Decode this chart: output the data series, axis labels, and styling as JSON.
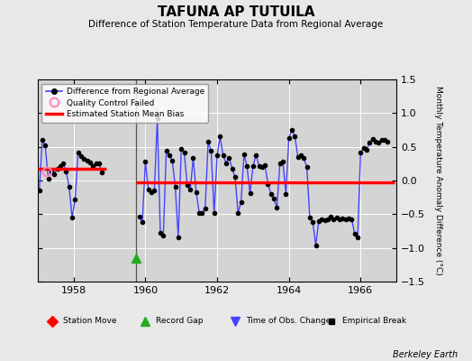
{
  "title": "TAFUNA AP TUTUILA",
  "subtitle": "Difference of Station Temperature Data from Regional Average",
  "ylabel": "Monthly Temperature Anomaly Difference (°C)",
  "ylim": [
    -1.5,
    1.5
  ],
  "yticks": [
    -1.5,
    -1.0,
    -0.5,
    0.0,
    0.5,
    1.0,
    1.5
  ],
  "xlim": [
    1957.0,
    1967.0
  ],
  "xticks": [
    1958,
    1960,
    1962,
    1964,
    1966
  ],
  "background_color": "#e8e8e8",
  "plot_bg_color": "#d4d4d4",
  "grid_color": "#ffffff",
  "line_color": "#4444ff",
  "marker_color": "#000000",
  "bias_color": "#ff0000",
  "record_gap_x": 1959.75,
  "record_gap_y": -1.15,
  "qc_fail_x": 1957.25,
  "qc_fail_y": 0.13,
  "segment1_bias": 0.17,
  "segment1_x_start": 1957.0,
  "segment1_x_end": 1958.9,
  "segment2_bias": -0.03,
  "segment2_x_start": 1959.75,
  "segment2_x_end": 1966.95,
  "gap_x": 1959.75,
  "time_series": [
    [
      1957.042,
      -0.15
    ],
    [
      1957.125,
      0.6
    ],
    [
      1957.208,
      0.52
    ],
    [
      1957.292,
      0.03
    ],
    [
      1957.375,
      0.13
    ],
    [
      1957.458,
      0.1
    ],
    [
      1957.542,
      0.18
    ],
    [
      1957.625,
      0.22
    ],
    [
      1957.708,
      0.25
    ],
    [
      1957.792,
      0.14
    ],
    [
      1957.875,
      -0.1
    ],
    [
      1957.958,
      -0.55
    ],
    [
      1958.042,
      -0.28
    ],
    [
      1958.125,
      0.42
    ],
    [
      1958.208,
      0.36
    ],
    [
      1958.292,
      0.32
    ],
    [
      1958.375,
      0.3
    ],
    [
      1958.458,
      0.27
    ],
    [
      1958.542,
      0.22
    ],
    [
      1958.625,
      0.26
    ],
    [
      1958.708,
      0.25
    ],
    [
      1958.792,
      0.12
    ],
    [
      1959.833,
      -0.54
    ],
    [
      1959.917,
      -0.61
    ],
    [
      1960.0,
      0.28
    ],
    [
      1960.083,
      -0.13
    ],
    [
      1960.167,
      -0.17
    ],
    [
      1960.25,
      -0.15
    ],
    [
      1960.333,
      0.92
    ],
    [
      1960.417,
      -0.78
    ],
    [
      1960.5,
      -0.82
    ],
    [
      1960.583,
      0.44
    ],
    [
      1960.667,
      0.37
    ],
    [
      1960.75,
      0.3
    ],
    [
      1960.833,
      -0.1
    ],
    [
      1960.917,
      -0.84
    ],
    [
      1961.0,
      0.47
    ],
    [
      1961.083,
      0.41
    ],
    [
      1961.167,
      -0.07
    ],
    [
      1961.25,
      -0.14
    ],
    [
      1961.333,
      0.33
    ],
    [
      1961.417,
      -0.17
    ],
    [
      1961.5,
      -0.48
    ],
    [
      1961.583,
      -0.48
    ],
    [
      1961.667,
      -0.41
    ],
    [
      1961.75,
      0.57
    ],
    [
      1961.833,
      0.44
    ],
    [
      1961.917,
      -0.48
    ],
    [
      1962.0,
      0.37
    ],
    [
      1962.083,
      0.65
    ],
    [
      1962.167,
      0.37
    ],
    [
      1962.25,
      0.26
    ],
    [
      1962.333,
      0.34
    ],
    [
      1962.417,
      0.18
    ],
    [
      1962.5,
      0.05
    ],
    [
      1962.583,
      -0.48
    ],
    [
      1962.667,
      -0.32
    ],
    [
      1962.75,
      0.39
    ],
    [
      1962.833,
      0.21
    ],
    [
      1962.917,
      -0.19
    ],
    [
      1963.0,
      0.21
    ],
    [
      1963.083,
      0.38
    ],
    [
      1963.167,
      0.22
    ],
    [
      1963.25,
      0.2
    ],
    [
      1963.333,
      0.23
    ],
    [
      1963.417,
      -0.05
    ],
    [
      1963.5,
      -0.2
    ],
    [
      1963.583,
      -0.27
    ],
    [
      1963.667,
      -0.4
    ],
    [
      1963.75,
      0.26
    ],
    [
      1963.833,
      0.28
    ],
    [
      1963.917,
      -0.2
    ],
    [
      1964.0,
      0.63
    ],
    [
      1964.083,
      0.75
    ],
    [
      1964.167,
      0.66
    ],
    [
      1964.25,
      0.35
    ],
    [
      1964.333,
      0.38
    ],
    [
      1964.417,
      0.33
    ],
    [
      1964.5,
      0.2
    ],
    [
      1964.583,
      -0.55
    ],
    [
      1964.667,
      -0.62
    ],
    [
      1964.75,
      -0.96
    ],
    [
      1964.833,
      -0.6
    ],
    [
      1964.917,
      -0.58
    ],
    [
      1965.0,
      -0.59
    ],
    [
      1965.083,
      -0.57
    ],
    [
      1965.167,
      -0.54
    ],
    [
      1965.25,
      -0.58
    ],
    [
      1965.333,
      -0.55
    ],
    [
      1965.417,
      -0.57
    ],
    [
      1965.5,
      -0.56
    ],
    [
      1965.583,
      -0.57
    ],
    [
      1965.667,
      -0.56
    ],
    [
      1965.75,
      -0.57
    ],
    [
      1965.833,
      -0.79
    ],
    [
      1965.917,
      -0.85
    ],
    [
      1966.0,
      0.42
    ],
    [
      1966.083,
      0.48
    ],
    [
      1966.167,
      0.46
    ],
    [
      1966.25,
      0.56
    ],
    [
      1966.333,
      0.62
    ],
    [
      1966.417,
      0.58
    ],
    [
      1966.5,
      0.56
    ],
    [
      1966.583,
      0.6
    ],
    [
      1966.667,
      0.6
    ],
    [
      1966.75,
      0.57
    ]
  ],
  "source_label": "Berkeley Earth"
}
